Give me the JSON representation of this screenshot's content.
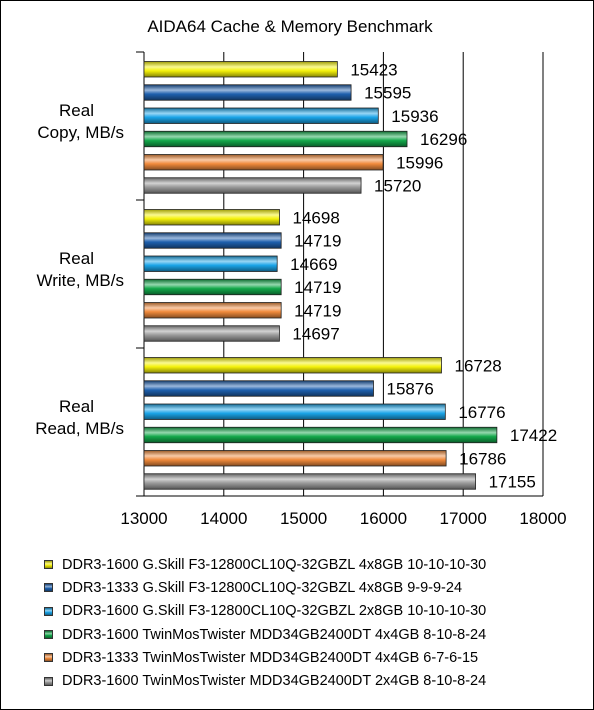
{
  "chart_data": {
    "type": "bar",
    "orientation": "horizontal",
    "title": "AIDA64 Cache & Memory Benchmark",
    "categories": [
      "Real Copy, MB/s",
      "Real Write, MB/s",
      "Real Read, MB/s"
    ],
    "category_lines": [
      [
        "Real",
        "Copy, MB/s"
      ],
      [
        "Real",
        "Write, MB/s"
      ],
      [
        "Real",
        "Read, MB/s"
      ]
    ],
    "series": [
      {
        "name": "DDR3-1600 G.Skill F3-12800CL10Q-32GBZL 4x8GB 10-10-10-30",
        "color": "#f4f10a",
        "values": [
          15423,
          14698,
          16728
        ]
      },
      {
        "name": "DDR3-1333 G.Skill F3-12800CL10Q-32GBZL 4x8GB 9-9-9-24",
        "color": "#1e60ae",
        "values": [
          15595,
          14719,
          15876
        ]
      },
      {
        "name": "DDR3-1600 G.Skill F3-12800CL10Q-32GBZL 2x8GB 10-10-10-30",
        "color": "#1aa4e8",
        "values": [
          15936,
          14669,
          16776
        ]
      },
      {
        "name": "DDR3-1600 TwinMosTwister MDD34GB2400DT 4x4GB 8-10-8-24",
        "color": "#13a84a",
        "values": [
          16296,
          14719,
          17422
        ]
      },
      {
        "name": "DDR3-1333 TwinMosTwister MDD34GB2400DT 4x4GB 6-7-6-15",
        "color": "#f08a3c",
        "values": [
          15996,
          14719,
          16786
        ]
      },
      {
        "name": "DDR3-1600 TwinMosTwister MDD34GB2400DT 2x4GB 8-10-8-24",
        "color": "#9a9a9a",
        "values": [
          15720,
          14697,
          17155
        ]
      }
    ],
    "xlim": [
      13000,
      18000
    ],
    "xticks": [
      "13000",
      "14000",
      "15000",
      "16000",
      "17000",
      "18000"
    ],
    "grid": true,
    "legend_position": "bottom"
  }
}
